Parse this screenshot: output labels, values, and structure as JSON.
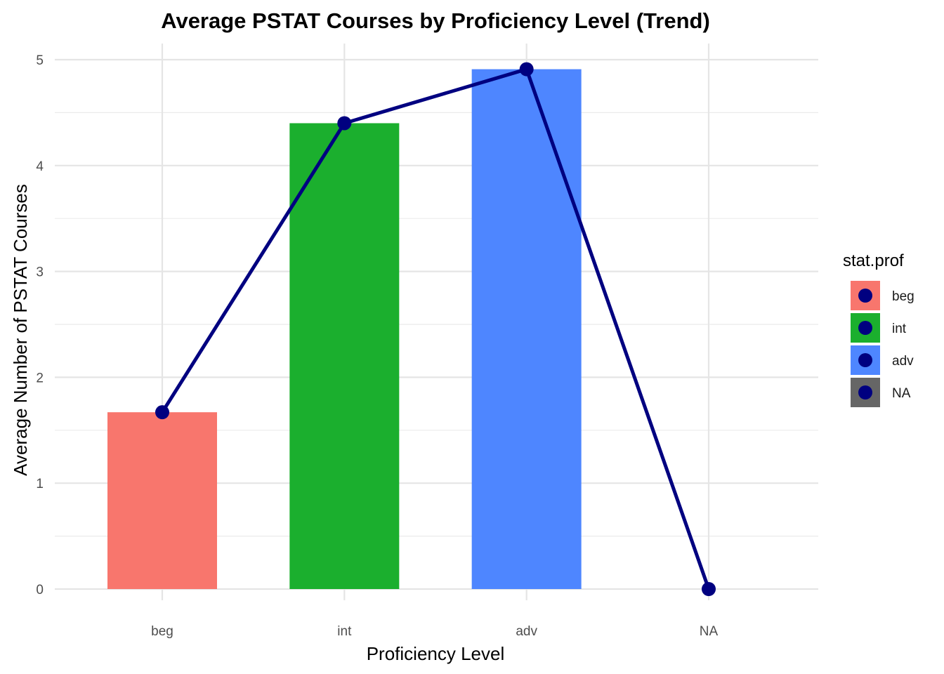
{
  "chart_data": {
    "type": "bar",
    "title": "Average PSTAT Courses by Proficiency Level (Trend)",
    "xlabel": "Proficiency Level",
    "ylabel": "Average Number of PSTAT Courses",
    "categories": [
      "beg",
      "int",
      "adv",
      "NA"
    ],
    "values": [
      1.67,
      4.4,
      4.91,
      null
    ],
    "trend_line": {
      "values": [
        1.67,
        4.4,
        4.91,
        0
      ],
      "color": "#000080"
    },
    "bar_colors": [
      "#F8766D",
      "#1BAF2E",
      "#4E86FF",
      "#666666"
    ],
    "ylim": [
      0,
      5
    ],
    "y_ticks": [
      0,
      1,
      2,
      3,
      4,
      5
    ],
    "grid": true,
    "legend": {
      "title": "stat.prof",
      "placement": "right",
      "entries": [
        "beg",
        "int",
        "adv",
        "NA"
      ]
    }
  }
}
